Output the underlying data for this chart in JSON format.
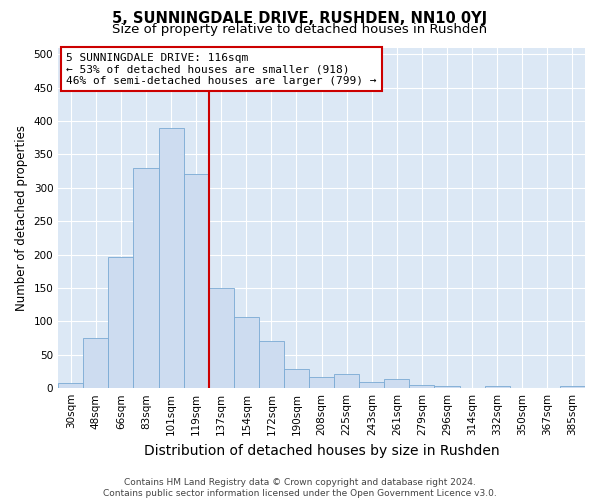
{
  "title": "5, SUNNINGDALE DRIVE, RUSHDEN, NN10 0YJ",
  "subtitle": "Size of property relative to detached houses in Rushden",
  "xlabel": "Distribution of detached houses by size in Rushden",
  "ylabel": "Number of detached properties",
  "categories": [
    "30sqm",
    "48sqm",
    "66sqm",
    "83sqm",
    "101sqm",
    "119sqm",
    "137sqm",
    "154sqm",
    "172sqm",
    "190sqm",
    "208sqm",
    "225sqm",
    "243sqm",
    "261sqm",
    "279sqm",
    "296sqm",
    "314sqm",
    "332sqm",
    "350sqm",
    "367sqm",
    "385sqm"
  ],
  "values": [
    8,
    75,
    197,
    330,
    390,
    320,
    150,
    107,
    71,
    29,
    16,
    21,
    10,
    13,
    5,
    4,
    0,
    4,
    0,
    0,
    4
  ],
  "bar_color": "#cddcf0",
  "bar_edge_color": "#7aaad4",
  "vline_x": 5.5,
  "vline_color": "#cc0000",
  "annotation_line1": "5 SUNNINGDALE DRIVE: 116sqm",
  "annotation_line2": "← 53% of detached houses are smaller (918)",
  "annotation_line3": "46% of semi-detached houses are larger (799) →",
  "annotation_box_color": "#ffffff",
  "annotation_box_edge_color": "#cc0000",
  "ylim": [
    0,
    510
  ],
  "yticks": [
    0,
    50,
    100,
    150,
    200,
    250,
    300,
    350,
    400,
    450,
    500
  ],
  "background_color": "#dce8f5",
  "footer": "Contains HM Land Registry data © Crown copyright and database right 2024.\nContains public sector information licensed under the Open Government Licence v3.0.",
  "title_fontsize": 10.5,
  "subtitle_fontsize": 9.5,
  "xlabel_fontsize": 10,
  "ylabel_fontsize": 8.5,
  "tick_fontsize": 7.5,
  "annotation_fontsize": 8,
  "footer_fontsize": 6.5
}
